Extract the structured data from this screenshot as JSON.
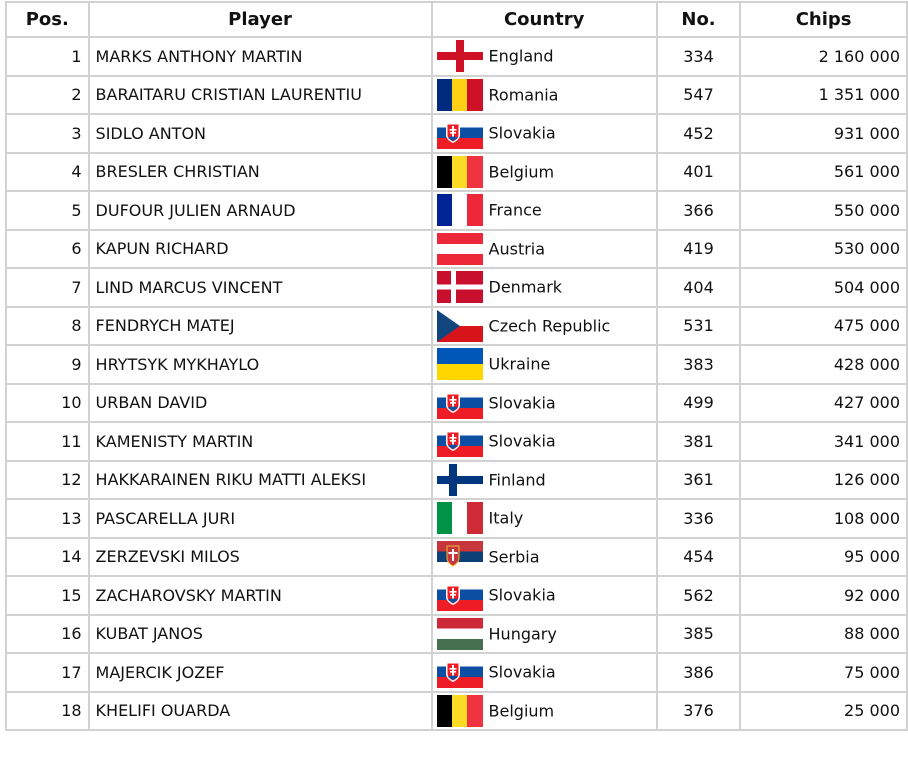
{
  "headers": {
    "pos": "Pos.",
    "player": "Player",
    "country": "Country",
    "no": "No.",
    "chips": "Chips"
  },
  "rows": [
    {
      "pos": "1",
      "player": "MARKS ANTHONY MARTIN",
      "country": "England",
      "flag": "england-flag",
      "no": "334",
      "chips": "2 160 000"
    },
    {
      "pos": "2",
      "player": "BARAITARU CRISTIAN LAURENTIU",
      "country": "Romania",
      "flag": "romania-flag",
      "no": "547",
      "chips": "1 351 000"
    },
    {
      "pos": "3",
      "player": "SIDLO ANTON",
      "country": "Slovakia",
      "flag": "slovakia-flag",
      "no": "452",
      "chips": "931 000"
    },
    {
      "pos": "4",
      "player": "BRESLER CHRISTIAN",
      "country": "Belgium",
      "flag": "belgium-flag",
      "no": "401",
      "chips": "561 000"
    },
    {
      "pos": "5",
      "player": "DUFOUR JULIEN ARNAUD",
      "country": "France",
      "flag": "france-flag",
      "no": "366",
      "chips": "550 000"
    },
    {
      "pos": "6",
      "player": "KAPUN RICHARD",
      "country": "Austria",
      "flag": "austria-flag",
      "no": "419",
      "chips": "530 000"
    },
    {
      "pos": "7",
      "player": "LIND MARCUS VINCENT",
      "country": "Denmark",
      "flag": "denmark-flag",
      "no": "404",
      "chips": "504 000"
    },
    {
      "pos": "8",
      "player": "FENDRYCH MATEJ",
      "country": "Czech Republic",
      "flag": "czech-flag",
      "no": "531",
      "chips": "475 000"
    },
    {
      "pos": "9",
      "player": "HRYTSYK MYKHAYLO",
      "country": "Ukraine",
      "flag": "ukraine-flag",
      "no": "383",
      "chips": "428 000"
    },
    {
      "pos": "10",
      "player": "URBAN DAVID",
      "country": "Slovakia",
      "flag": "slovakia-flag",
      "no": "499",
      "chips": "427 000"
    },
    {
      "pos": "11",
      "player": "KAMENISTY MARTIN",
      "country": "Slovakia",
      "flag": "slovakia-flag",
      "no": "381",
      "chips": "341 000"
    },
    {
      "pos": "12",
      "player": "HAKKARAINEN RIKU MATTI ALEKSI",
      "country": "Finland",
      "flag": "finland-flag",
      "no": "361",
      "chips": "126 000"
    },
    {
      "pos": "13",
      "player": "PASCARELLA JURI",
      "country": "Italy",
      "flag": "italy-flag",
      "no": "336",
      "chips": "108 000"
    },
    {
      "pos": "14",
      "player": "ZERZEVSKI MILOS",
      "country": "Serbia",
      "flag": "serbia-flag",
      "no": "454",
      "chips": "95 000"
    },
    {
      "pos": "15",
      "player": "ZACHAROVSKY MARTIN",
      "country": "Slovakia",
      "flag": "slovakia-flag",
      "no": "562",
      "chips": "92 000"
    },
    {
      "pos": "16",
      "player": "KUBAT JANOS",
      "country": "Hungary",
      "flag": "hungary-flag",
      "no": "385",
      "chips": "88 000"
    },
    {
      "pos": "17",
      "player": "MAJERCIK JOZEF",
      "country": "Slovakia",
      "flag": "slovakia-flag",
      "no": "386",
      "chips": "75 000"
    },
    {
      "pos": "18",
      "player": "KHELIFI OUARDA",
      "country": "Belgium",
      "flag": "belgium-flag",
      "no": "376",
      "chips": "25 000"
    }
  ]
}
